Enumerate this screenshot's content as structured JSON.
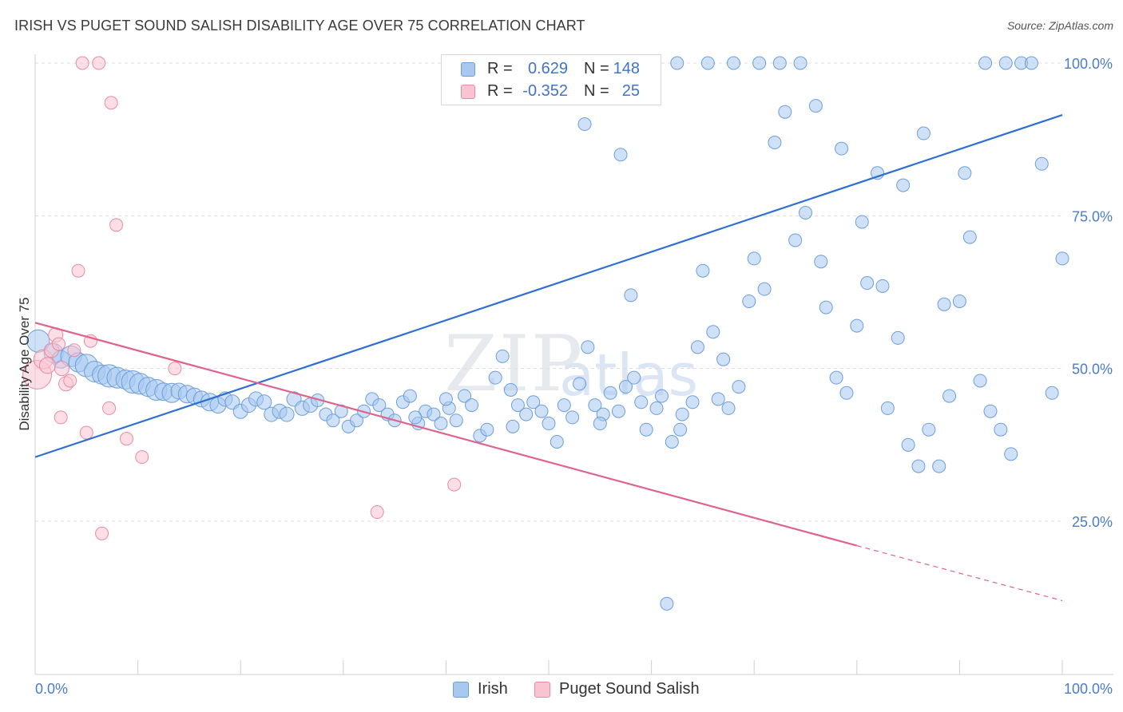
{
  "title": "IRISH VS PUGET SOUND SALISH DISABILITY AGE OVER 75 CORRELATION CHART",
  "source": "Source: ZipAtlas.com",
  "watermark": {
    "zip": "ZIP",
    "atlas": "atlas"
  },
  "legend": {
    "r_label": "R =",
    "n_label": "N =",
    "items": [
      {
        "name": "Irish",
        "r": "0.629",
        "n": "148",
        "color": "#a8c8f0",
        "border": "#6d9edc"
      },
      {
        "name": "Puget Sound Salish",
        "r": "-0.352",
        "n": "25",
        "color": "#f9c4d2",
        "border": "#e88aa6"
      }
    ]
  },
  "chart_data": {
    "type": "scatter",
    "title": "IRISH VS PUGET SOUND SALISH DISABILITY AGE OVER 75 CORRELATION CHART",
    "xlabel": "",
    "ylabel": "Disability Age Over 75",
    "xlim": [
      0,
      100
    ],
    "ylim": [
      0,
      100
    ],
    "x_ticks": [
      "0.0%",
      "100.0%"
    ],
    "y_ticks": [
      {
        "value": 25,
        "label": "25.0%"
      },
      {
        "value": 50,
        "label": "50.0%"
      },
      {
        "value": 75,
        "label": "75.0%"
      },
      {
        "value": 100,
        "label": "100.0%"
      }
    ],
    "grid": true,
    "series": [
      {
        "name": "Irish",
        "color": "#6d9edc",
        "fill": "#a8c8f0",
        "trend": {
          "x": [
            0,
            100
          ],
          "y": [
            35.5,
            91.5
          ],
          "color": "#2e6fd0"
        },
        "points": [
          [
            0.3,
            54.5,
            14
          ],
          [
            1.8,
            52.5,
            12
          ],
          [
            2.5,
            51.5,
            11
          ],
          [
            3.5,
            52.0,
            13
          ],
          [
            4.2,
            51.0,
            12
          ],
          [
            5.0,
            50.5,
            14
          ],
          [
            5.8,
            49.5,
            13
          ],
          [
            6.5,
            49.0,
            12
          ],
          [
            7.2,
            48.8,
            14
          ],
          [
            8.0,
            48.5,
            13
          ],
          [
            8.8,
            48.2,
            12
          ],
          [
            9.5,
            47.8,
            14
          ],
          [
            10.2,
            47.5,
            13
          ],
          [
            11.0,
            47.0,
            12
          ],
          [
            11.8,
            46.5,
            13
          ],
          [
            12.5,
            46.2,
            11
          ],
          [
            13.3,
            46.0,
            12
          ],
          [
            14.0,
            46.3,
            10
          ],
          [
            14.8,
            45.8,
            11
          ],
          [
            15.5,
            45.5,
            10
          ],
          [
            16.2,
            45.0,
            10
          ],
          [
            17.0,
            44.5,
            11
          ],
          [
            17.8,
            44.0,
            10
          ],
          [
            18.5,
            45.0,
            9
          ],
          [
            19.2,
            44.5,
            9
          ],
          [
            20.0,
            43.0,
            9
          ],
          [
            20.8,
            44.0,
            9
          ],
          [
            21.5,
            45.0,
            9
          ],
          [
            22.3,
            44.5,
            9
          ],
          [
            23.0,
            42.5,
            9
          ],
          [
            23.8,
            43.0,
            9
          ],
          [
            24.5,
            42.5,
            9
          ],
          [
            25.2,
            45.0,
            9
          ],
          [
            26.0,
            43.5,
            9
          ],
          [
            26.8,
            44.0,
            9
          ],
          [
            27.5,
            44.8,
            8
          ],
          [
            28.3,
            42.5,
            8
          ],
          [
            29.0,
            41.5,
            8
          ],
          [
            29.8,
            43.0,
            8
          ],
          [
            30.5,
            40.5,
            8
          ],
          [
            31.3,
            41.5,
            8
          ],
          [
            32.0,
            43.0,
            8
          ],
          [
            32.8,
            45.0,
            8
          ],
          [
            33.5,
            44.0,
            8
          ],
          [
            34.3,
            42.5,
            8
          ],
          [
            35.0,
            41.5,
            8
          ],
          [
            35.8,
            44.5,
            8
          ],
          [
            36.5,
            45.5,
            8
          ],
          [
            37.3,
            41.0,
            8
          ],
          [
            38.0,
            43.0,
            8
          ],
          [
            38.8,
            42.5,
            8
          ],
          [
            39.5,
            41.0,
            8
          ],
          [
            40.3,
            43.5,
            8
          ],
          [
            41.0,
            41.5,
            8
          ],
          [
            41.8,
            45.5,
            8
          ],
          [
            42.5,
            44.0,
            8
          ],
          [
            43.3,
            39.0,
            8
          ],
          [
            44.0,
            40.0,
            8
          ],
          [
            44.8,
            48.5,
            8
          ],
          [
            45.5,
            52.0,
            8
          ],
          [
            46.3,
            46.5,
            8
          ],
          [
            47.0,
            44.0,
            8
          ],
          [
            47.8,
            42.5,
            8
          ],
          [
            48.5,
            44.5,
            8
          ],
          [
            49.3,
            43.0,
            8
          ],
          [
            50.0,
            41.0,
            8
          ],
          [
            50.8,
            38.0,
            8
          ],
          [
            51.5,
            44.0,
            8
          ],
          [
            52.3,
            42.0,
            8
          ],
          [
            53.0,
            47.5,
            8
          ],
          [
            53.8,
            53.5,
            8
          ],
          [
            54.5,
            44.0,
            8
          ],
          [
            55.3,
            42.5,
            8
          ],
          [
            56.0,
            46.0,
            8
          ],
          [
            56.8,
            43.0,
            8
          ],
          [
            57.5,
            47.0,
            8
          ],
          [
            58.3,
            48.5,
            8
          ],
          [
            59.0,
            44.5,
            8
          ],
          [
            55.0,
            41.0,
            8
          ],
          [
            46.5,
            40.5,
            8
          ],
          [
            40.0,
            45.0,
            8
          ],
          [
            37.0,
            42.0,
            8
          ],
          [
            59.5,
            40.0,
            8
          ],
          [
            60.5,
            43.5,
            8
          ],
          [
            61.0,
            45.5,
            8
          ],
          [
            62.0,
            38.0,
            8
          ],
          [
            63.0,
            42.5,
            8
          ],
          [
            64.0,
            44.5,
            8
          ],
          [
            64.5,
            53.5,
            8
          ],
          [
            65.0,
            66.0,
            8
          ],
          [
            66.0,
            56.0,
            8
          ],
          [
            67.0,
            51.5,
            8
          ],
          [
            67.5,
            43.5,
            8
          ],
          [
            68.5,
            47.0,
            8
          ],
          [
            69.5,
            61.0,
            8
          ],
          [
            70.0,
            68.0,
            8
          ],
          [
            71.0,
            63.0,
            8
          ],
          [
            72.0,
            87.0,
            8
          ],
          [
            73.0,
            92.0,
            8
          ],
          [
            74.0,
            71.0,
            8
          ],
          [
            75.0,
            75.5,
            8
          ],
          [
            76.0,
            93.0,
            8
          ],
          [
            77.0,
            60.0,
            8
          ],
          [
            78.0,
            48.5,
            8
          ],
          [
            79.0,
            46.0,
            8
          ],
          [
            80.0,
            57.0,
            8
          ],
          [
            81.0,
            64.0,
            8
          ],
          [
            82.0,
            82.0,
            8
          ],
          [
            83.0,
            43.5,
            8
          ],
          [
            84.0,
            55.0,
            8
          ],
          [
            85.0,
            37.5,
            8
          ],
          [
            86.0,
            34.0,
            8
          ],
          [
            87.0,
            40.0,
            8
          ],
          [
            88.0,
            34.0,
            8
          ],
          [
            89.0,
            45.5,
            8
          ],
          [
            90.0,
            61.0,
            8
          ],
          [
            91.0,
            71.5,
            8
          ],
          [
            92.0,
            48.0,
            8
          ],
          [
            93.0,
            43.0,
            8
          ],
          [
            94.0,
            40.0,
            8
          ],
          [
            95.0,
            36.0,
            8
          ],
          [
            96.0,
            100.0,
            8
          ],
          [
            97.0,
            100.0,
            8
          ],
          [
            98.0,
            83.5,
            8
          ],
          [
            99.0,
            46.0,
            8
          ],
          [
            100.0,
            68.0,
            8
          ],
          [
            76.5,
            67.5,
            8
          ],
          [
            78.5,
            86.0,
            8
          ],
          [
            80.5,
            74.0,
            8
          ],
          [
            82.5,
            63.5,
            8
          ],
          [
            84.5,
            80.0,
            8
          ],
          [
            86.5,
            88.5,
            8
          ],
          [
            88.5,
            60.5,
            8
          ],
          [
            90.5,
            82.0,
            8
          ],
          [
            92.5,
            100.0,
            8
          ],
          [
            94.5,
            100.0,
            8
          ],
          [
            62.5,
            100.0,
            8
          ],
          [
            65.5,
            100.0,
            8
          ],
          [
            68.0,
            100.0,
            8
          ],
          [
            70.5,
            100.0,
            8
          ],
          [
            72.5,
            100.0,
            8
          ],
          [
            74.5,
            100.0,
            8
          ],
          [
            53.5,
            90.0,
            8
          ],
          [
            57.0,
            85.0,
            8
          ],
          [
            58.0,
            62.0,
            8
          ],
          [
            62.8,
            40.0,
            8
          ],
          [
            66.5,
            45.0,
            8
          ],
          [
            61.5,
            11.5,
            8
          ]
        ]
      },
      {
        "name": "Puget Sound Salish",
        "color": "#e88aa6",
        "fill": "#f9c4d2",
        "trend": {
          "x": [
            0,
            80
          ],
          "y": [
            57.5,
            21.0
          ],
          "dash_to": [
            100,
            12.0
          ],
          "color": "#e0638c"
        },
        "points": [
          [
            0.2,
            49.0,
            18
          ],
          [
            0.8,
            51.5,
            12
          ],
          [
            1.2,
            50.5,
            10
          ],
          [
            1.6,
            53.0,
            9
          ],
          [
            2.0,
            55.5,
            9
          ],
          [
            2.3,
            54.0,
            8
          ],
          [
            2.6,
            50.0,
            9
          ],
          [
            3.0,
            47.5,
            9
          ],
          [
            3.4,
            48.0,
            8
          ],
          [
            3.8,
            53.0,
            8
          ],
          [
            4.2,
            66.0,
            8
          ],
          [
            4.6,
            100.0,
            8
          ],
          [
            5.0,
            39.5,
            8
          ],
          [
            5.4,
            54.5,
            8
          ],
          [
            6.2,
            100.0,
            8
          ],
          [
            6.5,
            23.0,
            8
          ],
          [
            7.4,
            93.5,
            8
          ],
          [
            7.2,
            43.5,
            8
          ],
          [
            7.9,
            73.5,
            8
          ],
          [
            8.9,
            38.5,
            8
          ],
          [
            10.4,
            35.5,
            8
          ],
          [
            13.6,
            50.0,
            8
          ],
          [
            2.5,
            42.0,
            8
          ],
          [
            33.3,
            26.5,
            8
          ],
          [
            40.8,
            31.0,
            8
          ]
        ]
      }
    ]
  }
}
